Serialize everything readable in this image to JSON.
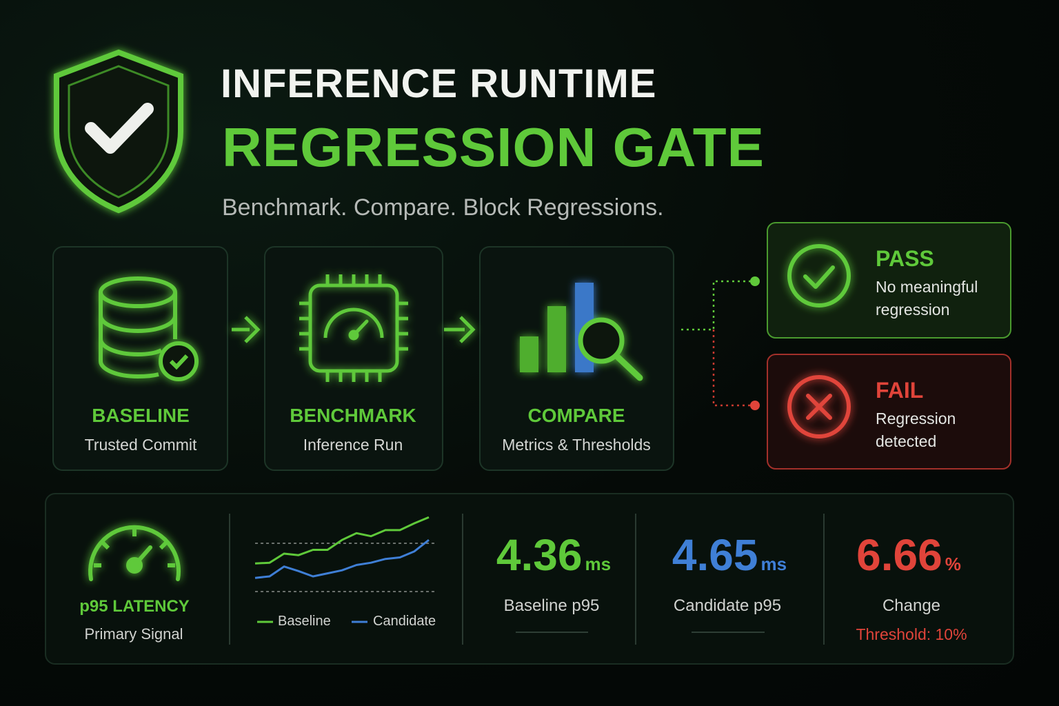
{
  "header": {
    "title_line1": "INFERENCE RUNTIME",
    "title_line2": "REGRESSION GATE",
    "subtitle": "Benchmark. Compare. Block Regressions."
  },
  "steps": [
    {
      "label": "BASELINE",
      "sub": "Trusted Commit"
    },
    {
      "label": "BENCHMARK",
      "sub": "Inference Run"
    },
    {
      "label": "COMPARE",
      "sub": "Metrics & Thresholds"
    }
  ],
  "outcomes": {
    "pass": {
      "label": "PASS",
      "text": "No meaningful regression"
    },
    "fail": {
      "label": "FAIL",
      "text": "Regression detected"
    }
  },
  "metrics": {
    "signal": {
      "label": "p95 LATENCY",
      "sub": "Primary Signal"
    },
    "trend": {
      "ylim": [
        0,
        100
      ],
      "series": [
        {
          "name": "Baseline",
          "color": "#5fc93a",
          "values": [
            37,
            38,
            50,
            48,
            55,
            55,
            68,
            77,
            73,
            81,
            81,
            90,
            98
          ]
        },
        {
          "name": "Candidate",
          "color": "#3f7fd6",
          "values": [
            18,
            20,
            33,
            27,
            20,
            24,
            28,
            35,
            38,
            43,
            45,
            53,
            68
          ]
        }
      ]
    },
    "stats": [
      {
        "value": "4.36",
        "unit": "ms",
        "label": "Baseline p95",
        "color": "#5fc93a"
      },
      {
        "value": "4.65",
        "unit": "ms",
        "label": "Candidate p95",
        "color": "#3f7fd6"
      },
      {
        "value": "6.66",
        "unit": "%",
        "label": "Change",
        "note": "Threshold: 10%",
        "color": "#e0443a"
      }
    ]
  }
}
